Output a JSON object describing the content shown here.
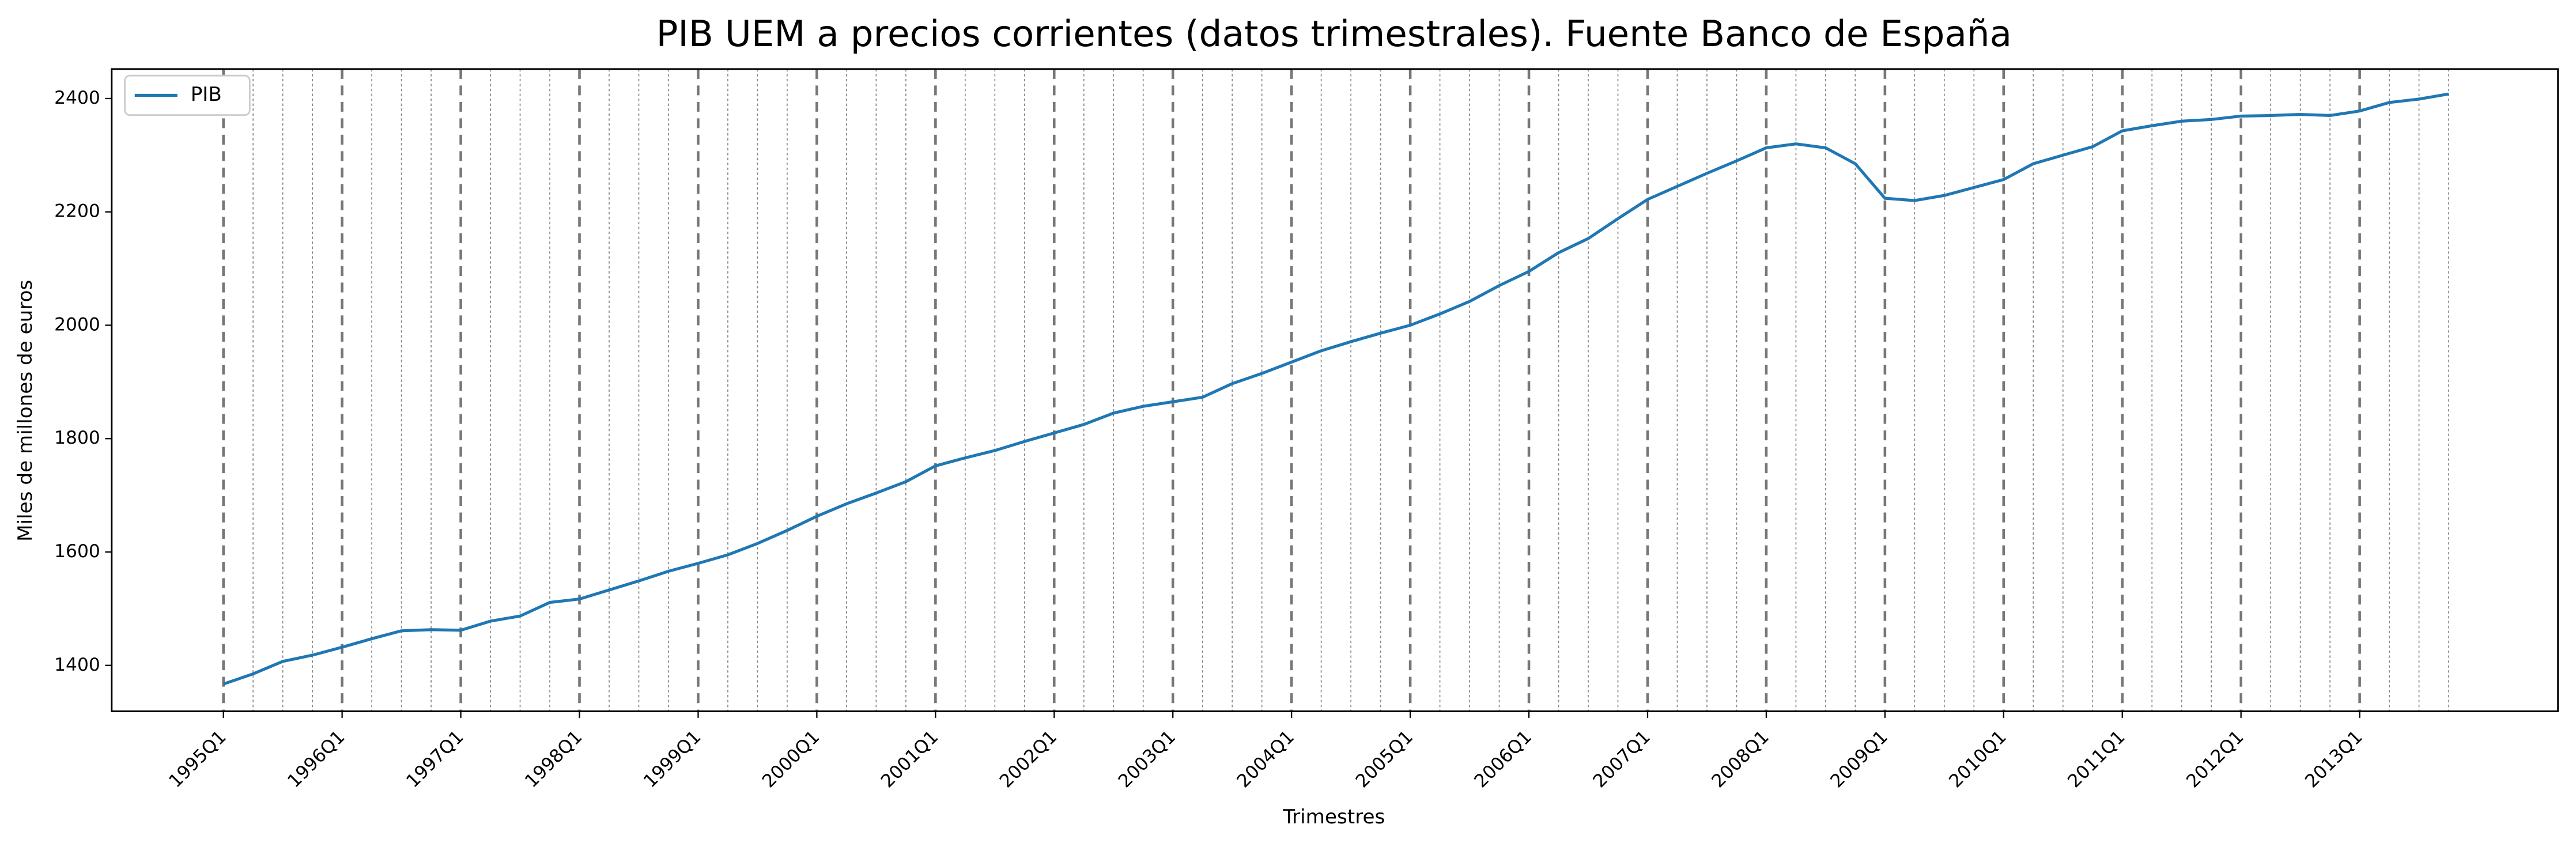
{
  "chart_data": {
    "type": "line",
    "title": "PIB UEM a precios corrientes (datos trimestrales). Fuente Banco de España",
    "x_label": "Trimestres",
    "y_label": "Miles de millones de euros",
    "categories": [
      "1995Q1",
      null,
      null,
      null,
      "1996Q1",
      null,
      null,
      null,
      "1997Q1",
      null,
      null,
      null,
      "1998Q1",
      null,
      null,
      null,
      "1999Q1",
      null,
      null,
      null,
      "2000Q1",
      null,
      null,
      null,
      "2001Q1",
      null,
      null,
      null,
      "2002Q1",
      null,
      null,
      null,
      "2003Q1",
      null,
      null,
      null,
      "2004Q1",
      null,
      null,
      null,
      "2005Q1",
      null,
      null,
      null,
      "2006Q1",
      null,
      null,
      null,
      "2007Q1",
      null,
      null,
      null,
      "2008Q1",
      null,
      null,
      null,
      "2009Q1",
      null,
      null,
      null,
      "2010Q1",
      null,
      null,
      null,
      "2011Q1",
      null,
      null,
      null,
      "2012Q1",
      null,
      null,
      null,
      "2013Q1",
      null,
      null,
      null
    ],
    "series": [
      {
        "name": "PIB",
        "color": "#1f77b4",
        "values": [
          1367,
          1385,
          1407,
          1418,
          1432,
          1447,
          1461,
          1463,
          1462,
          1478,
          1487,
          1511,
          1517,
          1533,
          1549,
          1566,
          1580,
          1595,
          1615,
          1638,
          1663,
          1685,
          1704,
          1724,
          1752,
          1766,
          1779,
          1795,
          1810,
          1825,
          1845,
          1857,
          1865,
          1873,
          1897,
          1915,
          1935,
          1955,
          1971,
          1986,
          2000,
          2020,
          2042,
          2070,
          2095,
          2128,
          2153,
          2188,
          2222,
          2245,
          2268,
          2290,
          2313,
          2320,
          2313,
          2285,
          2224,
          2220,
          2229,
          2243,
          2257,
          2285,
          2300,
          2315,
          2343,
          2352,
          2360,
          2363,
          2369,
          2370,
          2372,
          2370,
          2378,
          2393,
          2399,
          2408
        ]
      }
    ],
    "ylim": [
      1319,
      2452
    ],
    "yticks": [
      1400,
      1600,
      1800,
      2000,
      2200,
      2400
    ],
    "legend": "upper left"
  }
}
